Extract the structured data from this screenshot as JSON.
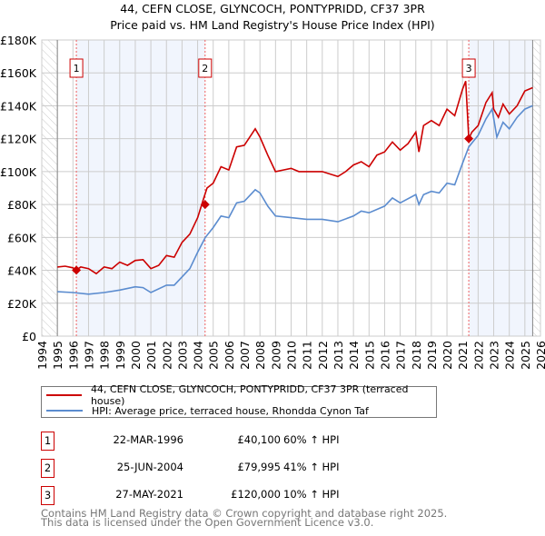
{
  "title_line1": "44, CEFN CLOSE, GLYNCOCH, PONTYPRIDD, CF37 3PR",
  "title_line2": "Price paid vs. HM Land Registry's House Price Index (HPI)",
  "chart_data": {
    "type": "line",
    "title": "44, CEFN CLOSE, GLYNCOCH, PONTYPRIDD, CF37 3PR — Price paid vs. HM Land Registry's House Price Index (HPI)",
    "xlim": [
      1994,
      2026
    ],
    "ylim": [
      0,
      180000
    ],
    "x_ticks": [
      "1994",
      "1995",
      "1996",
      "1997",
      "1998",
      "1999",
      "2000",
      "2001",
      "2002",
      "2003",
      "2004",
      "2005",
      "2006",
      "2007",
      "2008",
      "2009",
      "2010",
      "2011",
      "2012",
      "2013",
      "2014",
      "2015",
      "2016",
      "2017",
      "2018",
      "2019",
      "2020",
      "2021",
      "2022",
      "2023",
      "2024",
      "2025",
      "2026"
    ],
    "y_ticks": [
      {
        "v": 0,
        "label": "£0"
      },
      {
        "v": 20000,
        "label": "£20K"
      },
      {
        "v": 40000,
        "label": "£40K"
      },
      {
        "v": 60000,
        "label": "£60K"
      },
      {
        "v": 80000,
        "label": "£80K"
      },
      {
        "v": 100000,
        "label": "£100K"
      },
      {
        "v": 120000,
        "label": "£120K"
      },
      {
        "v": 140000,
        "label": "£140K"
      },
      {
        "v": 160000,
        "label": "£160K"
      },
      {
        "v": 180000,
        "label": "£180K"
      }
    ],
    "grid": true,
    "data_range": [
      1995,
      2025.5
    ],
    "series": [
      {
        "name": "44, CEFN CLOSE, GLYNCOCH, PONTYPRIDD, CF37 3PR (terraced house)",
        "color": "#cc0000",
        "x": [
          1995,
          1995.5,
          1996,
          1996.2,
          1996.5,
          1997,
          1997.5,
          1998,
          1998.5,
          1999,
          1999.5,
          2000,
          2000.5,
          2001,
          2001.5,
          2002,
          2002.5,
          2003,
          2003.5,
          2004,
          2004.4,
          2004.6,
          2005,
          2005.5,
          2006,
          2006.5,
          2007,
          2007.7,
          2008,
          2008.5,
          2009,
          2009.5,
          2010,
          2010.5,
          2011,
          2012,
          2013,
          2013.5,
          2014,
          2014.5,
          2015,
          2015.5,
          2016,
          2016.5,
          2017,
          2017.5,
          2018,
          2018.2,
          2018.5,
          2019,
          2019.5,
          2020,
          2020.5,
          2021,
          2021.2,
          2021.4,
          2021.6,
          2022,
          2022.5,
          2022.9,
          2023,
          2023.3,
          2023.6,
          2024,
          2024.5,
          2025,
          2025.5
        ],
        "y": [
          42000,
          42500,
          41500,
          40100,
          42000,
          41000,
          38000,
          42000,
          41000,
          45000,
          43000,
          46000,
          46500,
          41000,
          43000,
          49000,
          48000,
          57000,
          62000,
          72000,
          84000,
          90000,
          93000,
          103000,
          101000,
          115000,
          116000,
          126000,
          121000,
          110000,
          100000,
          101000,
          102000,
          100000,
          100000,
          100000,
          97000,
          100000,
          104000,
          106000,
          103000,
          110000,
          112000,
          118000,
          113000,
          117000,
          124000,
          112000,
          128000,
          131000,
          128000,
          138000,
          134000,
          150000,
          155000,
          120000,
          124000,
          128000,
          142000,
          148000,
          138000,
          133000,
          141000,
          135000,
          140000,
          149000,
          151000
        ]
      },
      {
        "name": "HPI: Average price, terraced house, Rhondda Cynon Taf",
        "color": "#5b8ccf",
        "x": [
          1995,
          1996,
          1997,
          1998,
          1999,
          2000,
          2000.5,
          2001,
          2002,
          2002.5,
          2003,
          2003.5,
          2004,
          2004.5,
          2005,
          2005.5,
          2006,
          2006.5,
          2007,
          2007.7,
          2008,
          2008.5,
          2009,
          2010,
          2011,
          2012,
          2013,
          2014,
          2014.5,
          2015,
          2016,
          2016.5,
          2017,
          2018,
          2018.2,
          2018.5,
          2019,
          2019.5,
          2020,
          2020.5,
          2021,
          2021.4,
          2022,
          2022.5,
          2022.9,
          2023.2,
          2023.6,
          2024,
          2024.5,
          2025,
          2025.5
        ],
        "y": [
          27000,
          26500,
          25500,
          26500,
          28000,
          30000,
          29500,
          26500,
          31000,
          31000,
          36000,
          41000,
          51000,
          60000,
          66000,
          73000,
          72000,
          81000,
          82000,
          89000,
          87000,
          79000,
          73000,
          72000,
          71000,
          71000,
          69500,
          73000,
          76000,
          75000,
          79000,
          84000,
          81000,
          86000,
          80000,
          86000,
          88000,
          87000,
          93000,
          92000,
          105000,
          115000,
          122000,
          132000,
          138000,
          121000,
          130000,
          126000,
          133000,
          138000,
          140000
        ]
      }
    ],
    "sales": [
      {
        "label": "1",
        "x": 1996.22,
        "y": 40100
      },
      {
        "label": "2",
        "x": 2004.48,
        "y": 79995
      },
      {
        "label": "3",
        "x": 2021.4,
        "y": 120000
      }
    ]
  },
  "legend": [
    {
      "label": "44, CEFN CLOSE, GLYNCOCH, PONTYPRIDD, CF37 3PR (terraced house)",
      "color": "#cc0000"
    },
    {
      "label": "HPI: Average price, terraced house, Rhondda Cynon Taf",
      "color": "#5b8ccf"
    }
  ],
  "transactions": [
    {
      "num": "1",
      "date": "22-MAR-1996",
      "price": "£40,100",
      "hpi": "60% ↑ HPI"
    },
    {
      "num": "2",
      "date": "25-JUN-2004",
      "price": "£79,995",
      "hpi": "41% ↑ HPI"
    },
    {
      "num": "3",
      "date": "27-MAY-2021",
      "price": "£120,000",
      "hpi": "10% ↑ HPI"
    }
  ],
  "footer_line1": "Contains HM Land Registry data © Crown copyright and database right 2025.",
  "footer_line2": "This data is licensed under the Open Government Licence v3.0."
}
